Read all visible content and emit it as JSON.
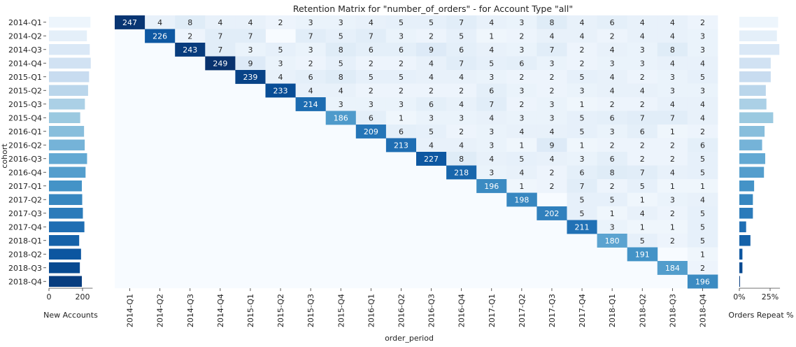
{
  "title": "Retention Matrix for \"number_of_orders\" - for Account Type \"all\"",
  "chart_data": [
    {
      "type": "bar",
      "orientation": "horizontal",
      "categories": [
        "2014-Q1",
        "2014-Q2",
        "2014-Q3",
        "2014-Q4",
        "2015-Q1",
        "2015-Q2",
        "2015-Q3",
        "2015-Q4",
        "2016-Q1",
        "2016-Q2",
        "2016-Q3",
        "2016-Q4",
        "2017-Q1",
        "2017-Q2",
        "2017-Q3",
        "2017-Q4",
        "2018-Q1",
        "2018-Q2",
        "2018-Q3",
        "2018-Q4"
      ],
      "values": [
        247,
        226,
        243,
        249,
        239,
        233,
        214,
        186,
        209,
        213,
        227,
        218,
        196,
        198,
        202,
        211,
        180,
        191,
        184,
        196
      ],
      "xlabel": "New Accounts",
      "ylabel": "cohort",
      "xticks": [
        "0",
        "200"
      ],
      "xlim": [
        0,
        260
      ]
    },
    {
      "type": "heatmap",
      "title": "Retention Matrix for \"number_of_orders\" - for Account Type \"all\"",
      "xlabel": "order_period",
      "rows": [
        "2014-Q1",
        "2014-Q2",
        "2014-Q3",
        "2014-Q4",
        "2015-Q1",
        "2015-Q2",
        "2015-Q3",
        "2015-Q4",
        "2016-Q1",
        "2016-Q2",
        "2016-Q3",
        "2016-Q4",
        "2017-Q1",
        "2017-Q2",
        "2017-Q3",
        "2017-Q4",
        "2018-Q1",
        "2018-Q2",
        "2018-Q3",
        "2018-Q4"
      ],
      "columns": [
        "2014-Q1",
        "2014-Q2",
        "2014-Q3",
        "2014-Q4",
        "2015-Q1",
        "2015-Q2",
        "2015-Q3",
        "2015-Q4",
        "2016-Q1",
        "2016-Q2",
        "2016-Q3",
        "2016-Q4",
        "2017-Q1",
        "2017-Q2",
        "2017-Q3",
        "2017-Q4",
        "2018-Q1",
        "2018-Q2",
        "2018-Q3",
        "2018-Q4"
      ],
      "values": [
        [
          247,
          4,
          8,
          4,
          4,
          2,
          3,
          3,
          4,
          5,
          5,
          7,
          4,
          3,
          8,
          4,
          6,
          4,
          4,
          2
        ],
        [
          null,
          226,
          2,
          7,
          7,
          null,
          7,
          5,
          7,
          3,
          2,
          5,
          1,
          2,
          4,
          4,
          2,
          4,
          4,
          3
        ],
        [
          null,
          null,
          243,
          7,
          3,
          5,
          3,
          8,
          6,
          6,
          9,
          6,
          4,
          3,
          7,
          2,
          4,
          3,
          8,
          3
        ],
        [
          null,
          null,
          null,
          249,
          9,
          3,
          2,
          5,
          2,
          2,
          4,
          7,
          5,
          6,
          3,
          2,
          3,
          3,
          4,
          4
        ],
        [
          null,
          null,
          null,
          null,
          239,
          4,
          6,
          8,
          5,
          5,
          4,
          4,
          3,
          2,
          2,
          5,
          4,
          2,
          3,
          5
        ],
        [
          null,
          null,
          null,
          null,
          null,
          233,
          4,
          4,
          2,
          2,
          2,
          2,
          6,
          3,
          2,
          3,
          4,
          4,
          3,
          3
        ],
        [
          null,
          null,
          null,
          null,
          null,
          null,
          214,
          3,
          3,
          3,
          6,
          4,
          7,
          2,
          3,
          1,
          2,
          2,
          4,
          4
        ],
        [
          null,
          null,
          null,
          null,
          null,
          null,
          null,
          186,
          6,
          1,
          3,
          3,
          4,
          3,
          3,
          5,
          6,
          7,
          7,
          4
        ],
        [
          null,
          null,
          null,
          null,
          null,
          null,
          null,
          null,
          209,
          6,
          5,
          2,
          3,
          4,
          4,
          5,
          3,
          6,
          1,
          2
        ],
        [
          null,
          null,
          null,
          null,
          null,
          null,
          null,
          null,
          null,
          213,
          4,
          4,
          3,
          1,
          9,
          1,
          2,
          2,
          2,
          6
        ],
        [
          null,
          null,
          null,
          null,
          null,
          null,
          null,
          null,
          null,
          null,
          227,
          8,
          4,
          5,
          4,
          3,
          6,
          2,
          2,
          5
        ],
        [
          null,
          null,
          null,
          null,
          null,
          null,
          null,
          null,
          null,
          null,
          null,
          218,
          3,
          4,
          2,
          6,
          8,
          7,
          4,
          5
        ],
        [
          null,
          null,
          null,
          null,
          null,
          null,
          null,
          null,
          null,
          null,
          null,
          null,
          196,
          1,
          2,
          7,
          2,
          5,
          1,
          1
        ],
        [
          null,
          null,
          null,
          null,
          null,
          null,
          null,
          null,
          null,
          null,
          null,
          null,
          null,
          198,
          null,
          5,
          5,
          1,
          3,
          4
        ],
        [
          null,
          null,
          null,
          null,
          null,
          null,
          null,
          null,
          null,
          null,
          null,
          null,
          null,
          null,
          202,
          5,
          1,
          4,
          2,
          5
        ],
        [
          null,
          null,
          null,
          null,
          null,
          null,
          null,
          null,
          null,
          null,
          null,
          null,
          null,
          null,
          null,
          211,
          3,
          1,
          1,
          5
        ],
        [
          null,
          null,
          null,
          null,
          null,
          null,
          null,
          null,
          null,
          null,
          null,
          null,
          null,
          null,
          null,
          null,
          180,
          5,
          2,
          5
        ],
        [
          null,
          null,
          null,
          null,
          null,
          null,
          null,
          null,
          null,
          null,
          null,
          null,
          null,
          null,
          null,
          null,
          null,
          191,
          null,
          1
        ],
        [
          null,
          null,
          null,
          null,
          null,
          null,
          null,
          null,
          null,
          null,
          null,
          null,
          null,
          null,
          null,
          null,
          null,
          null,
          184,
          2
        ],
        [
          null,
          null,
          null,
          null,
          null,
          null,
          null,
          null,
          null,
          null,
          null,
          null,
          null,
          null,
          null,
          null,
          null,
          null,
          null,
          196
        ]
      ]
    },
    {
      "type": "bar",
      "orientation": "horizontal",
      "categories": [
        "2014-Q1",
        "2014-Q2",
        "2014-Q3",
        "2014-Q4",
        "2015-Q1",
        "2015-Q2",
        "2015-Q3",
        "2015-Q4",
        "2016-Q1",
        "2016-Q2",
        "2016-Q3",
        "2016-Q4",
        "2017-Q1",
        "2017-Q2",
        "2017-Q3",
        "2017-Q4",
        "2018-Q1",
        "2018-Q2",
        "2018-Q3",
        "2018-Q4"
      ],
      "values": [
        31.5,
        30.5,
        32.5,
        25.5,
        25.5,
        21.5,
        22.0,
        27.5,
        20.5,
        18.5,
        21.0,
        20.0,
        12.0,
        11.0,
        11.0,
        5.5,
        9.0,
        2.5,
        2.5,
        0.5
      ],
      "xlabel": "Orders Repeat %",
      "xticks": [
        "0%",
        "25%"
      ],
      "xlim": [
        0,
        33
      ]
    }
  ],
  "colors": {
    "lightest": "#f7fbff",
    "darkest": "#08306b",
    "text_dark": "#222222",
    "text_light": "#ffffff"
  }
}
